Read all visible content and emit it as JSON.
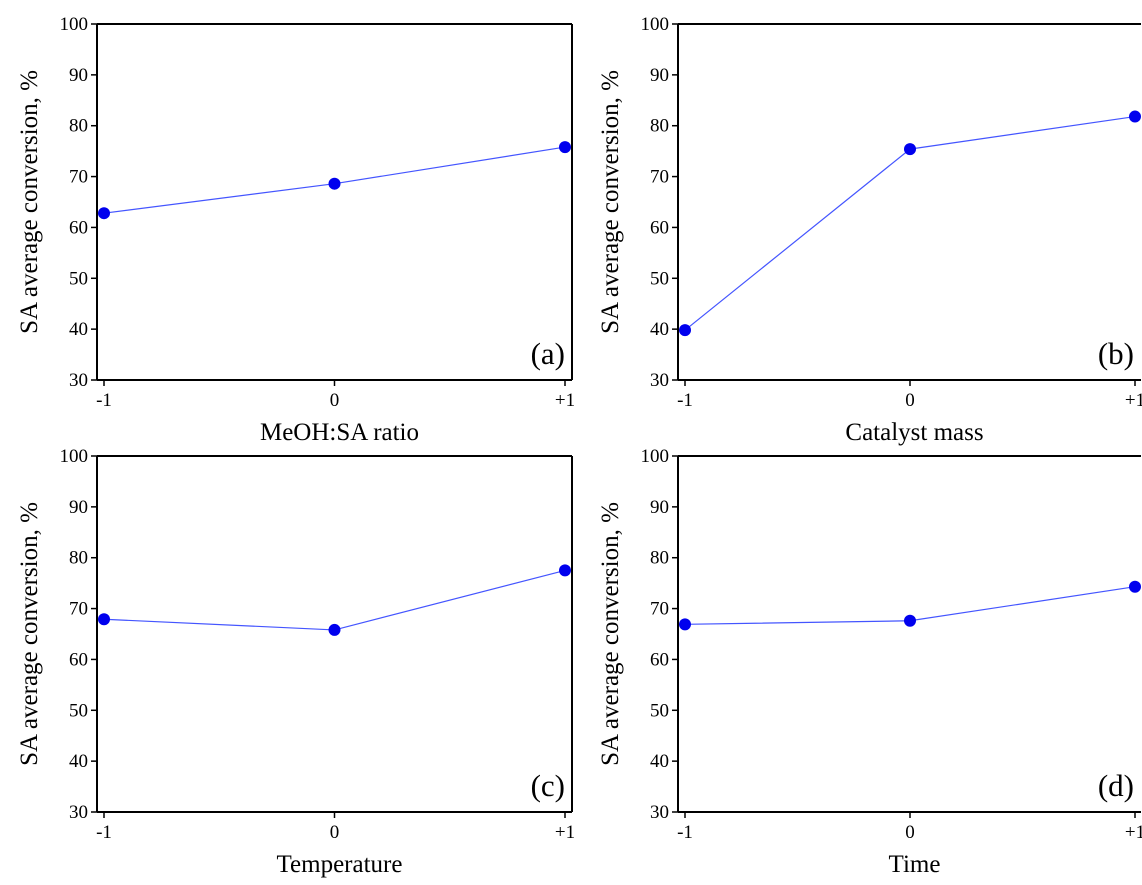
{
  "colors": {
    "series": "#0000ee",
    "line": "#4455ff",
    "axes": "#000000"
  },
  "chart_data": [
    {
      "type": "line",
      "panel_label": "(a)",
      "xlabel": "MeOH:SA ratio",
      "ylabel": "SA average conversion, %",
      "categories": [
        "-1",
        "0",
        "+1"
      ],
      "values": [
        62.8,
        68.6,
        75.8
      ],
      "ylim": [
        30,
        100
      ],
      "yticks": [
        30,
        40,
        50,
        60,
        70,
        80,
        90,
        100
      ],
      "grid": false,
      "legend": "none"
    },
    {
      "type": "line",
      "panel_label": "(b)",
      "xlabel": "Catalyst mass",
      "ylabel": "SA average conversion, %",
      "categories": [
        "-1",
        "0",
        "+1"
      ],
      "values": [
        39.8,
        75.4,
        81.8
      ],
      "ylim": [
        30,
        100
      ],
      "yticks": [
        30,
        40,
        50,
        60,
        70,
        80,
        90,
        100
      ],
      "grid": false,
      "legend": "none"
    },
    {
      "type": "line",
      "panel_label": "(c)",
      "xlabel": "Temperature",
      "ylabel": "SA average conversion, %",
      "categories": [
        "-1",
        "0",
        "+1"
      ],
      "values": [
        67.9,
        65.8,
        77.5
      ],
      "ylim": [
        30,
        100
      ],
      "yticks": [
        30,
        40,
        50,
        60,
        70,
        80,
        90,
        100
      ],
      "grid": false,
      "legend": "none"
    },
    {
      "type": "line",
      "panel_label": "(d)",
      "xlabel": "Time",
      "ylabel": "SA average conversion, %",
      "categories": [
        "-1",
        "0",
        "+1"
      ],
      "values": [
        66.9,
        67.6,
        74.3
      ],
      "ylim": [
        30,
        100
      ],
      "yticks": [
        30,
        40,
        50,
        60,
        70,
        80,
        90,
        100
      ],
      "grid": false,
      "legend": "none"
    }
  ]
}
